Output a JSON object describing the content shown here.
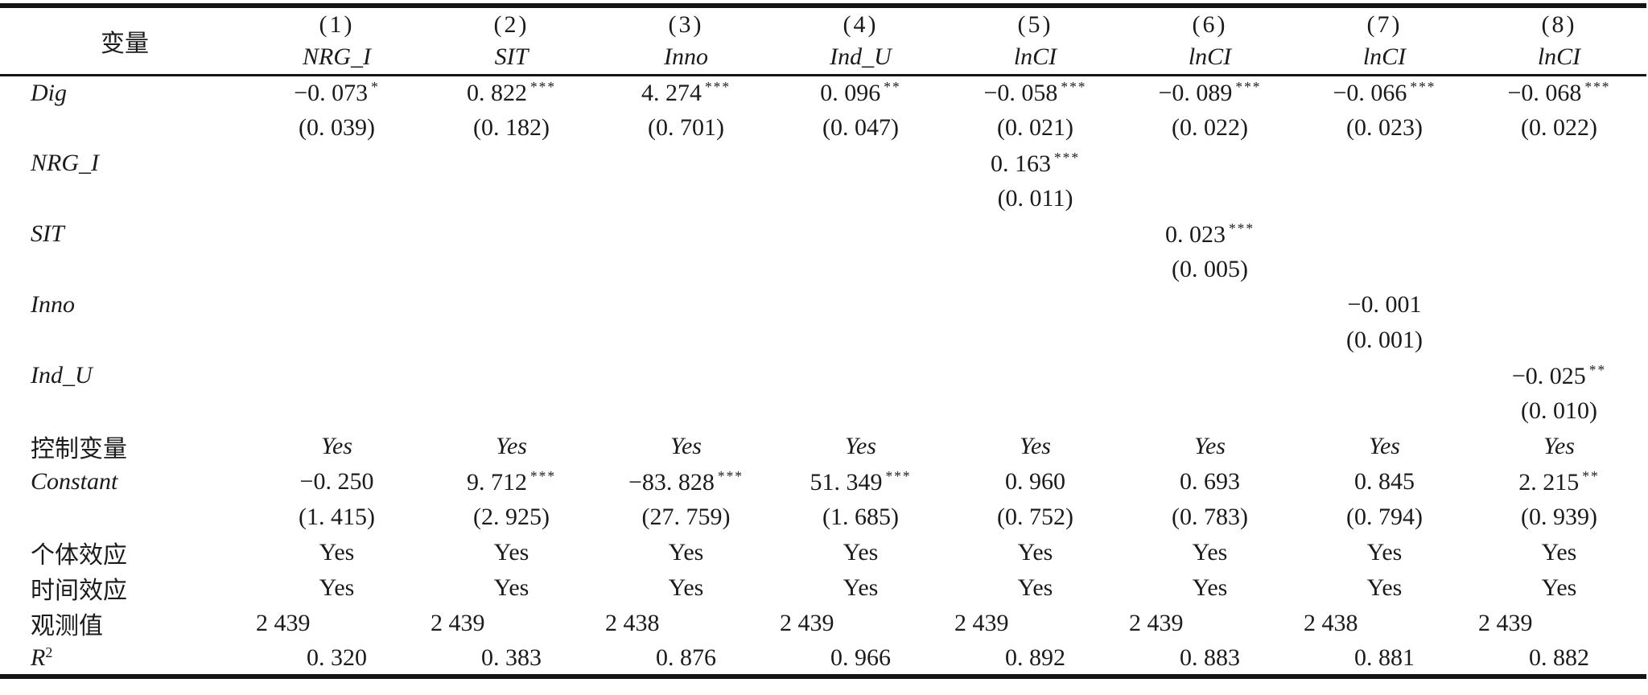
{
  "colors": {
    "background": "#ffffff",
    "text": "#1b1b1b",
    "rule": "#141414"
  },
  "table": {
    "header": {
      "variable_label": "变量",
      "model_numbers": [
        "(1)",
        "(2)",
        "(3)",
        "(4)",
        "(5)",
        "(6)",
        "(7)",
        "(8)"
      ],
      "dep_vars": [
        "NRG_I",
        "SIT",
        "Inno",
        "Ind_U",
        "lnCI",
        "lnCI",
        "lnCI",
        "lnCI"
      ]
    },
    "rows": [
      {
        "label": "Dig",
        "label_italic": true,
        "kind": "coef",
        "cells": [
          {
            "t": "−0. 073",
            "s": "*"
          },
          {
            "t": "0. 822",
            "s": "***"
          },
          {
            "t": "4. 274",
            "s": "***"
          },
          {
            "t": "0. 096",
            "s": "**"
          },
          {
            "t": "−0. 058",
            "s": "***"
          },
          {
            "t": "−0. 089",
            "s": "***"
          },
          {
            "t": "−0. 066",
            "s": "***"
          },
          {
            "t": "−0. 068",
            "s": "***"
          }
        ]
      },
      {
        "label": "",
        "kind": "se",
        "cells": [
          {
            "t": "(0. 039)"
          },
          {
            "t": "(0. 182)"
          },
          {
            "t": "(0. 701)"
          },
          {
            "t": "(0. 047)"
          },
          {
            "t": "(0. 021)"
          },
          {
            "t": "(0. 022)"
          },
          {
            "t": "(0. 023)"
          },
          {
            "t": "(0. 022)"
          }
        ]
      },
      {
        "label": "NRG_I",
        "label_italic": true,
        "kind": "coef",
        "cells": [
          {
            "t": ""
          },
          {
            "t": ""
          },
          {
            "t": ""
          },
          {
            "t": ""
          },
          {
            "t": "0. 163",
            "s": "***"
          },
          {
            "t": ""
          },
          {
            "t": ""
          },
          {
            "t": ""
          }
        ]
      },
      {
        "label": "",
        "kind": "se",
        "cells": [
          {
            "t": ""
          },
          {
            "t": ""
          },
          {
            "t": ""
          },
          {
            "t": ""
          },
          {
            "t": "(0. 011)"
          },
          {
            "t": ""
          },
          {
            "t": ""
          },
          {
            "t": ""
          }
        ]
      },
      {
        "label": "SIT",
        "label_italic": true,
        "kind": "coef",
        "cells": [
          {
            "t": ""
          },
          {
            "t": ""
          },
          {
            "t": ""
          },
          {
            "t": ""
          },
          {
            "t": ""
          },
          {
            "t": "0. 023",
            "s": "***"
          },
          {
            "t": ""
          },
          {
            "t": ""
          }
        ]
      },
      {
        "label": "",
        "kind": "se",
        "cells": [
          {
            "t": ""
          },
          {
            "t": ""
          },
          {
            "t": ""
          },
          {
            "t": ""
          },
          {
            "t": ""
          },
          {
            "t": "(0. 005)"
          },
          {
            "t": ""
          },
          {
            "t": ""
          }
        ]
      },
      {
        "label": "Inno",
        "label_italic": true,
        "kind": "coef",
        "cells": [
          {
            "t": ""
          },
          {
            "t": ""
          },
          {
            "t": ""
          },
          {
            "t": ""
          },
          {
            "t": ""
          },
          {
            "t": ""
          },
          {
            "t": "−0. 001"
          },
          {
            "t": ""
          }
        ]
      },
      {
        "label": "",
        "kind": "se",
        "cells": [
          {
            "t": ""
          },
          {
            "t": ""
          },
          {
            "t": ""
          },
          {
            "t": ""
          },
          {
            "t": ""
          },
          {
            "t": ""
          },
          {
            "t": "(0. 001)"
          },
          {
            "t": ""
          }
        ]
      },
      {
        "label": "Ind_U",
        "label_italic": true,
        "kind": "coef",
        "cells": [
          {
            "t": ""
          },
          {
            "t": ""
          },
          {
            "t": ""
          },
          {
            "t": ""
          },
          {
            "t": ""
          },
          {
            "t": ""
          },
          {
            "t": ""
          },
          {
            "t": "−0. 025",
            "s": "**"
          }
        ]
      },
      {
        "label": "",
        "kind": "se",
        "cells": [
          {
            "t": ""
          },
          {
            "t": ""
          },
          {
            "t": ""
          },
          {
            "t": ""
          },
          {
            "t": ""
          },
          {
            "t": ""
          },
          {
            "t": ""
          },
          {
            "t": "(0. 010)"
          }
        ]
      },
      {
        "label": "控制变量",
        "kind": "flag",
        "val_italic": true,
        "cells": [
          {
            "t": "Yes"
          },
          {
            "t": "Yes"
          },
          {
            "t": "Yes"
          },
          {
            "t": "Yes"
          },
          {
            "t": "Yes"
          },
          {
            "t": "Yes"
          },
          {
            "t": "Yes"
          },
          {
            "t": "Yes"
          }
        ]
      },
      {
        "label": "Constant",
        "label_italic": true,
        "kind": "coef",
        "cells": [
          {
            "t": "−0. 250"
          },
          {
            "t": "9. 712",
            "s": "***"
          },
          {
            "t": "−83. 828",
            "s": "***"
          },
          {
            "t": "51. 349",
            "s": "***"
          },
          {
            "t": "0. 960"
          },
          {
            "t": "0. 693"
          },
          {
            "t": "0. 845"
          },
          {
            "t": "2. 215",
            "s": "**"
          }
        ]
      },
      {
        "label": "",
        "kind": "se",
        "cells": [
          {
            "t": "(1. 415)"
          },
          {
            "t": "(2. 925)"
          },
          {
            "t": "(27. 759)"
          },
          {
            "t": "(1. 685)"
          },
          {
            "t": "(0. 752)"
          },
          {
            "t": "(0. 783)"
          },
          {
            "t": "(0. 794)"
          },
          {
            "t": "(0. 939)"
          }
        ]
      },
      {
        "label": "个体效应",
        "kind": "flag",
        "cells": [
          {
            "t": "Yes"
          },
          {
            "t": "Yes"
          },
          {
            "t": "Yes"
          },
          {
            "t": "Yes"
          },
          {
            "t": "Yes"
          },
          {
            "t": "Yes"
          },
          {
            "t": "Yes"
          },
          {
            "t": "Yes"
          }
        ]
      },
      {
        "label": "时间效应",
        "kind": "flag",
        "cells": [
          {
            "t": "Yes"
          },
          {
            "t": "Yes"
          },
          {
            "t": "Yes"
          },
          {
            "t": "Yes"
          },
          {
            "t": "Yes"
          },
          {
            "t": "Yes"
          },
          {
            "t": "Yes"
          },
          {
            "t": "Yes"
          }
        ]
      },
      {
        "label": "观测值",
        "kind": "stat",
        "align": "left",
        "cells": [
          {
            "t": "2 439"
          },
          {
            "t": "2 439"
          },
          {
            "t": "2 438"
          },
          {
            "t": "2 439"
          },
          {
            "t": "2 439"
          },
          {
            "t": "2 439"
          },
          {
            "t": "2 438"
          },
          {
            "t": "2 439"
          }
        ]
      },
      {
        "label": "R",
        "label_sup": "2",
        "label_italic": true,
        "kind": "stat",
        "cells": [
          {
            "t": "0. 320"
          },
          {
            "t": "0. 383"
          },
          {
            "t": "0. 876"
          },
          {
            "t": "0. 966"
          },
          {
            "t": "0. 892"
          },
          {
            "t": "0. 883"
          },
          {
            "t": "0. 881"
          },
          {
            "t": "0. 882"
          }
        ]
      }
    ]
  }
}
